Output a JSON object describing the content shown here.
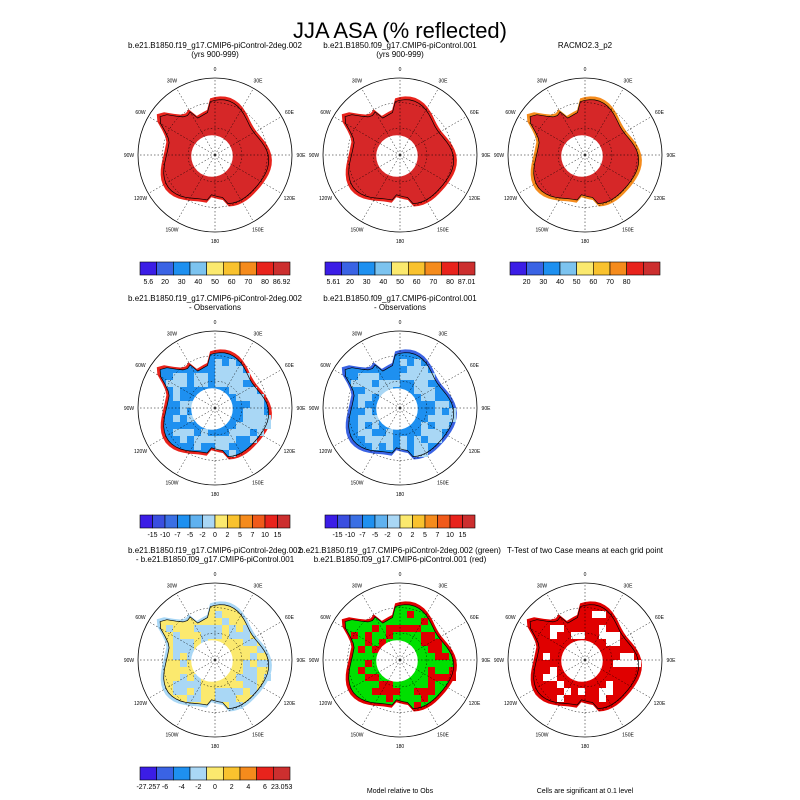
{
  "figure": {
    "title": "JJA ASA (% reflected)"
  },
  "colors": {
    "land": "#ffffff",
    "coast": "#000000",
    "grid": "#000000"
  },
  "chart_data": [
    {
      "type": "heatmap",
      "id": "p1",
      "title_line1": "b.e21.B1850.f19_g17.CMIP6-piControl-2deg.002",
      "title_line2": "(yrs 900-999)",
      "fill": "#d62728",
      "edge": "#e8231c",
      "colorbar": {
        "ticks": [
          "5.6",
          "20",
          "30",
          "40",
          "50",
          "60",
          "70",
          "80",
          "86.92"
        ],
        "colors": [
          "#3b1de6",
          "#3a63e4",
          "#1e90f0",
          "#7cc3ef",
          "#fbe96e",
          "#f9c22e",
          "#f58b1c",
          "#e8231c",
          "#cc2f2f"
        ]
      },
      "lon_labels": [
        "0",
        "30E",
        "60E",
        "90E",
        "120E",
        "150E",
        "180",
        "150W",
        "120W",
        "90W",
        "60W",
        "30W"
      ]
    },
    {
      "type": "heatmap",
      "id": "p2",
      "title_line1": "b.e21.B1850.f09_g17.CMIP6-piControl.001",
      "title_line2": "(yrs 900-999)",
      "fill": "#d62728",
      "edge": "#e8231c",
      "colorbar": {
        "ticks": [
          "5.61",
          "20",
          "30",
          "40",
          "50",
          "60",
          "70",
          "80",
          "87.01"
        ],
        "colors": [
          "#3b1de6",
          "#3a63e4",
          "#1e90f0",
          "#7cc3ef",
          "#fbe96e",
          "#f9c22e",
          "#f58b1c",
          "#e8231c",
          "#cc2f2f"
        ]
      },
      "lon_labels": [
        "0",
        "30E",
        "60E",
        "90E",
        "120E",
        "150E",
        "180",
        "150W",
        "120W",
        "90W",
        "60W",
        "30W"
      ]
    },
    {
      "type": "heatmap",
      "id": "p3",
      "title_line1": "RACMO2.3_p2",
      "title_line2": "",
      "fill": "#d62728",
      "edge": "#f58b1c",
      "colorbar": {
        "ticks": [
          "20",
          "30",
          "40",
          "50",
          "60",
          "70",
          "80"
        ],
        "colors": [
          "#3b1de6",
          "#3a63e4",
          "#1e90f0",
          "#7cc3ef",
          "#fbe96e",
          "#f9c22e",
          "#f58b1c",
          "#e8231c",
          "#cc2f2f"
        ]
      },
      "lon_labels": [
        "0",
        "30E",
        "60E",
        "90E",
        "120E",
        "150E",
        "180",
        "150W",
        "120W",
        "90W",
        "60W",
        "30W"
      ]
    },
    {
      "type": "heatmap",
      "id": "p4",
      "title_line1": "b.e21.B1850.f19_g17.CMIP6-piControl-2deg.002",
      "title_line2": "- Observations",
      "fill": "#1e90f0",
      "edge": "#e8231c",
      "colorbar": {
        "ticks": [
          "-15",
          "-10",
          "-7",
          "-5",
          "-2",
          "0",
          "2",
          "5",
          "7",
          "10",
          "15"
        ],
        "colors": [
          "#3b1de6",
          "#3a4ee0",
          "#3a6fe4",
          "#1e90f0",
          "#5fb1ef",
          "#a9d7f5",
          "#fbe96e",
          "#f9c22e",
          "#f58b1c",
          "#f05a1a",
          "#e8231c",
          "#cc2f2f"
        ]
      },
      "lon_labels": [
        "0",
        "30E",
        "60E",
        "90E",
        "120E",
        "150E",
        "180",
        "150W",
        "120W",
        "90W",
        "60W",
        "30W"
      ]
    },
    {
      "type": "heatmap",
      "id": "p5",
      "title_line1": "b.e21.B1850.f09_g17.CMIP6-piControl.001",
      "title_line2": "- Observations",
      "fill": "#1e90f0",
      "edge": "#3a63e4",
      "colorbar": {
        "ticks": [
          "-15",
          "-10",
          "-7",
          "-5",
          "-2",
          "0",
          "2",
          "5",
          "7",
          "10",
          "15"
        ],
        "colors": [
          "#3b1de6",
          "#3a4ee0",
          "#3a6fe4",
          "#1e90f0",
          "#5fb1ef",
          "#a9d7f5",
          "#fbe96e",
          "#f9c22e",
          "#f58b1c",
          "#f05a1a",
          "#e8231c",
          "#cc2f2f"
        ]
      },
      "lon_labels": [
        "0",
        "30E",
        "60E",
        "90E",
        "120E",
        "150E",
        "180",
        "150W",
        "120W",
        "90W",
        "60W",
        "30W"
      ]
    },
    {
      "type": "heatmap",
      "id": "p6",
      "title_line1": "b.e21.B1850.f19_g17.CMIP6-piControl-2deg.002",
      "title_line2": "- b.e21.B1850.f09_g17.CMIP6-piControl.001",
      "fill": "#fbe96e",
      "edge": "#a9d7f5",
      "colorbar": {
        "ticks": [
          "-27.257",
          "-6",
          "-4",
          "-2",
          "0",
          "2",
          "4",
          "6",
          "23.053"
        ],
        "colors": [
          "#3b1de6",
          "#3a63e4",
          "#1e90f0",
          "#a9d7f5",
          "#fbe96e",
          "#f9c22e",
          "#f58b1c",
          "#e8231c",
          "#cc2f2f"
        ]
      },
      "lon_labels": [
        "0",
        "30E",
        "60E",
        "90E",
        "120E",
        "150E",
        "180",
        "150W",
        "120W",
        "90W",
        "60W",
        "30W"
      ]
    },
    {
      "type": "heatmap",
      "id": "p7",
      "title_line1": "b.e21.B1850.f19_g17.CMIP6-piControl-2deg.002 (green)",
      "title_line2": "b.e21.B1850.f09_g17.CMIP6-piControl.001 (red)",
      "fill": "#00e000",
      "edge": "#e00000",
      "caption": "Model relative to Obs",
      "lon_labels": [
        "0",
        "30E",
        "60E",
        "90E",
        "120E",
        "150E",
        "180",
        "150W",
        "120W",
        "90W",
        "60W",
        "30W"
      ]
    },
    {
      "type": "heatmap",
      "id": "p8",
      "title_line1": "T-Test of two Case means at each grid point",
      "title_line2": "",
      "fill": "#e00000",
      "edge": "#e00000",
      "caption": "Cells are significant at 0.1 level",
      "lon_labels": [
        "0",
        "30E",
        "60E",
        "90E",
        "120E",
        "150E",
        "180",
        "150W",
        "120W",
        "90W",
        "60W",
        "30W"
      ]
    }
  ]
}
